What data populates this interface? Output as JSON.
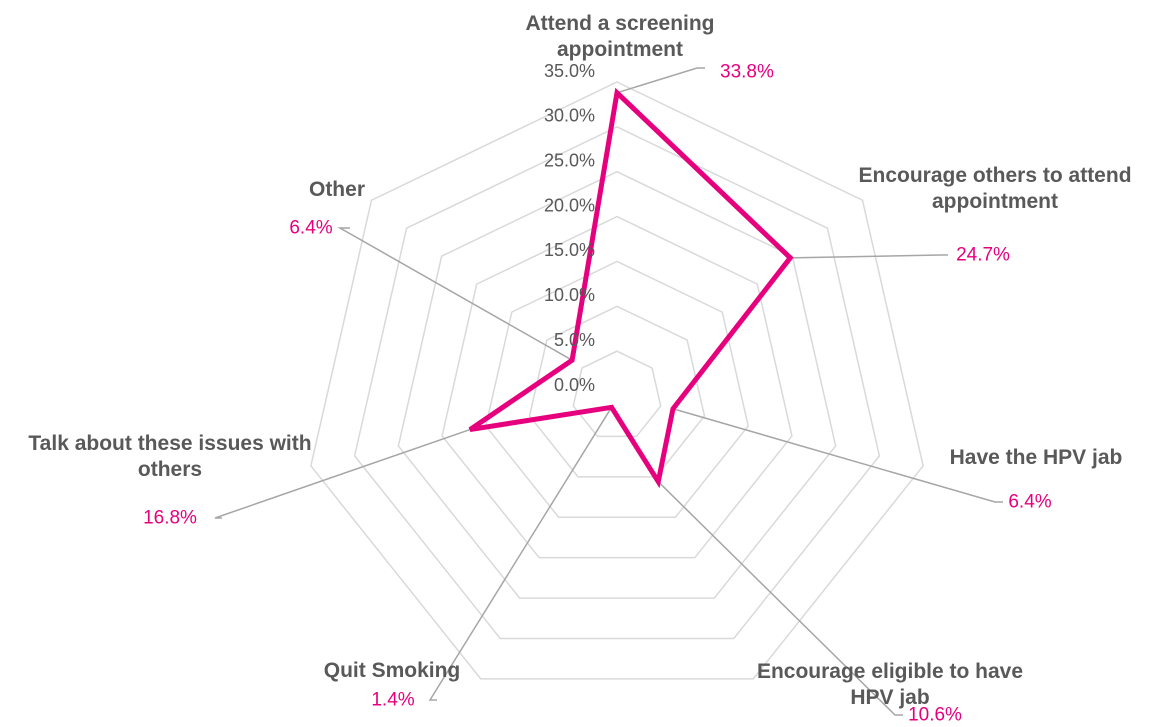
{
  "chart_data": {
    "type": "radar",
    "categories": [
      "Attend a screening appointment",
      "Encourage others to attend appointment",
      "Have the HPV jab",
      "Encourage eligible to have HPV jab",
      "Quit Smoking",
      "Talk about these issues with others",
      "Other"
    ],
    "values": [
      33.8,
      24.7,
      6.4,
      10.6,
      1.4,
      16.8,
      6.4
    ],
    "value_labels": [
      "33.8%",
      "24.7%",
      "6.4%",
      "10.6%",
      "1.4%",
      "16.8%",
      "6.4%"
    ],
    "color": "#e6007e",
    "ylim": [
      0,
      35
    ],
    "yticks": [
      {
        "value": 0,
        "label": "0.0%"
      },
      {
        "value": 5,
        "label": "5.0%"
      },
      {
        "value": 10,
        "label": "10.0%"
      },
      {
        "value": 15,
        "label": "15.0%"
      },
      {
        "value": 20,
        "label": "20.0%"
      },
      {
        "value": 25,
        "label": "25.0%"
      },
      {
        "value": 30,
        "label": "30.0%"
      },
      {
        "value": 35,
        "label": "35.0%"
      }
    ],
    "grid": true
  }
}
